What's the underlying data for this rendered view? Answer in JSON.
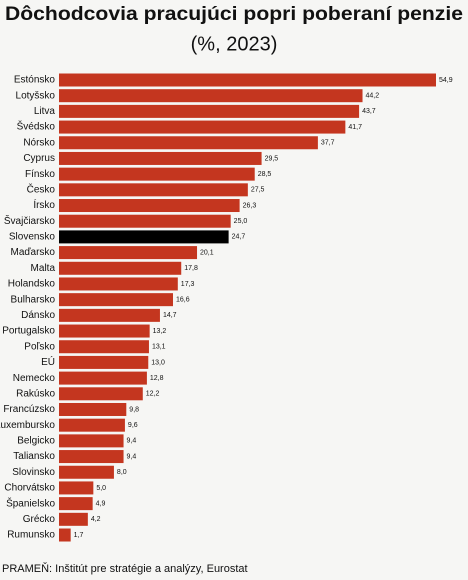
{
  "chart_data": {
    "type": "hbar",
    "title": "Dôchodcovia pracujúci popri poberaní penzie",
    "subtitle": "(%, 2023)",
    "categories": [
      "Estónsko",
      "Lotyšsko",
      "Litva",
      "Švédsko",
      "Nórsko",
      "Cyprus",
      "Fínsko",
      "Česko",
      "Írsko",
      "Švajčiarsko",
      "Slovensko",
      "Maďarsko",
      "Malta",
      "Holandsko",
      "Bulharsko",
      "Dánsko",
      "Portugalsko",
      "Poľsko",
      "EÚ",
      "Nemecko",
      "Rakúsko",
      "Francúzsko",
      "Luxembursko",
      "Belgicko",
      "Taliansko",
      "Slovinsko",
      "Chorvátsko",
      "Španielsko",
      "Grécko",
      "Rumunsko"
    ],
    "values": [
      54.9,
      44.2,
      43.7,
      41.7,
      37.7,
      29.5,
      28.5,
      27.5,
      26.3,
      25.0,
      24.7,
      20.1,
      17.8,
      17.3,
      16.6,
      14.7,
      13.2,
      13.1,
      13.0,
      12.8,
      12.2,
      9.8,
      9.6,
      9.4,
      9.4,
      8.0,
      5.0,
      4.9,
      4.2,
      1.7
    ],
    "value_labels": [
      "54,9",
      "44,2",
      "43,7",
      "41,7",
      "37,7",
      "29,5",
      "28,5",
      "27,5",
      "26,3",
      "25,0",
      "24,7",
      "20,1",
      "17,8",
      "17,3",
      "16,6",
      "14,7",
      "13,2",
      "13,1",
      "13,0",
      "12,8",
      "12,2",
      "9,8",
      "9,6",
      "9,4",
      "9,4",
      "8,0",
      "5,0",
      "4,9",
      "4,2",
      "1,7"
    ],
    "colors": [
      "#c4361f",
      "#c4361f",
      "#c4361f",
      "#c4361f",
      "#c4361f",
      "#c4361f",
      "#c4361f",
      "#c4361f",
      "#c4361f",
      "#c4361f",
      "#000000",
      "#c4361f",
      "#c4361f",
      "#c4361f",
      "#c4361f",
      "#c4361f",
      "#c4361f",
      "#c4361f",
      "#c4361f",
      "#c4361f",
      "#c4361f",
      "#c4361f",
      "#c4361f",
      "#c4361f",
      "#c4361f",
      "#c4361f",
      "#c4361f",
      "#c4361f",
      "#c4361f",
      "#c4361f"
    ],
    "source": "PRAMEŇ: Inštitút pre stratégie a analýzy, Eurostat"
  }
}
